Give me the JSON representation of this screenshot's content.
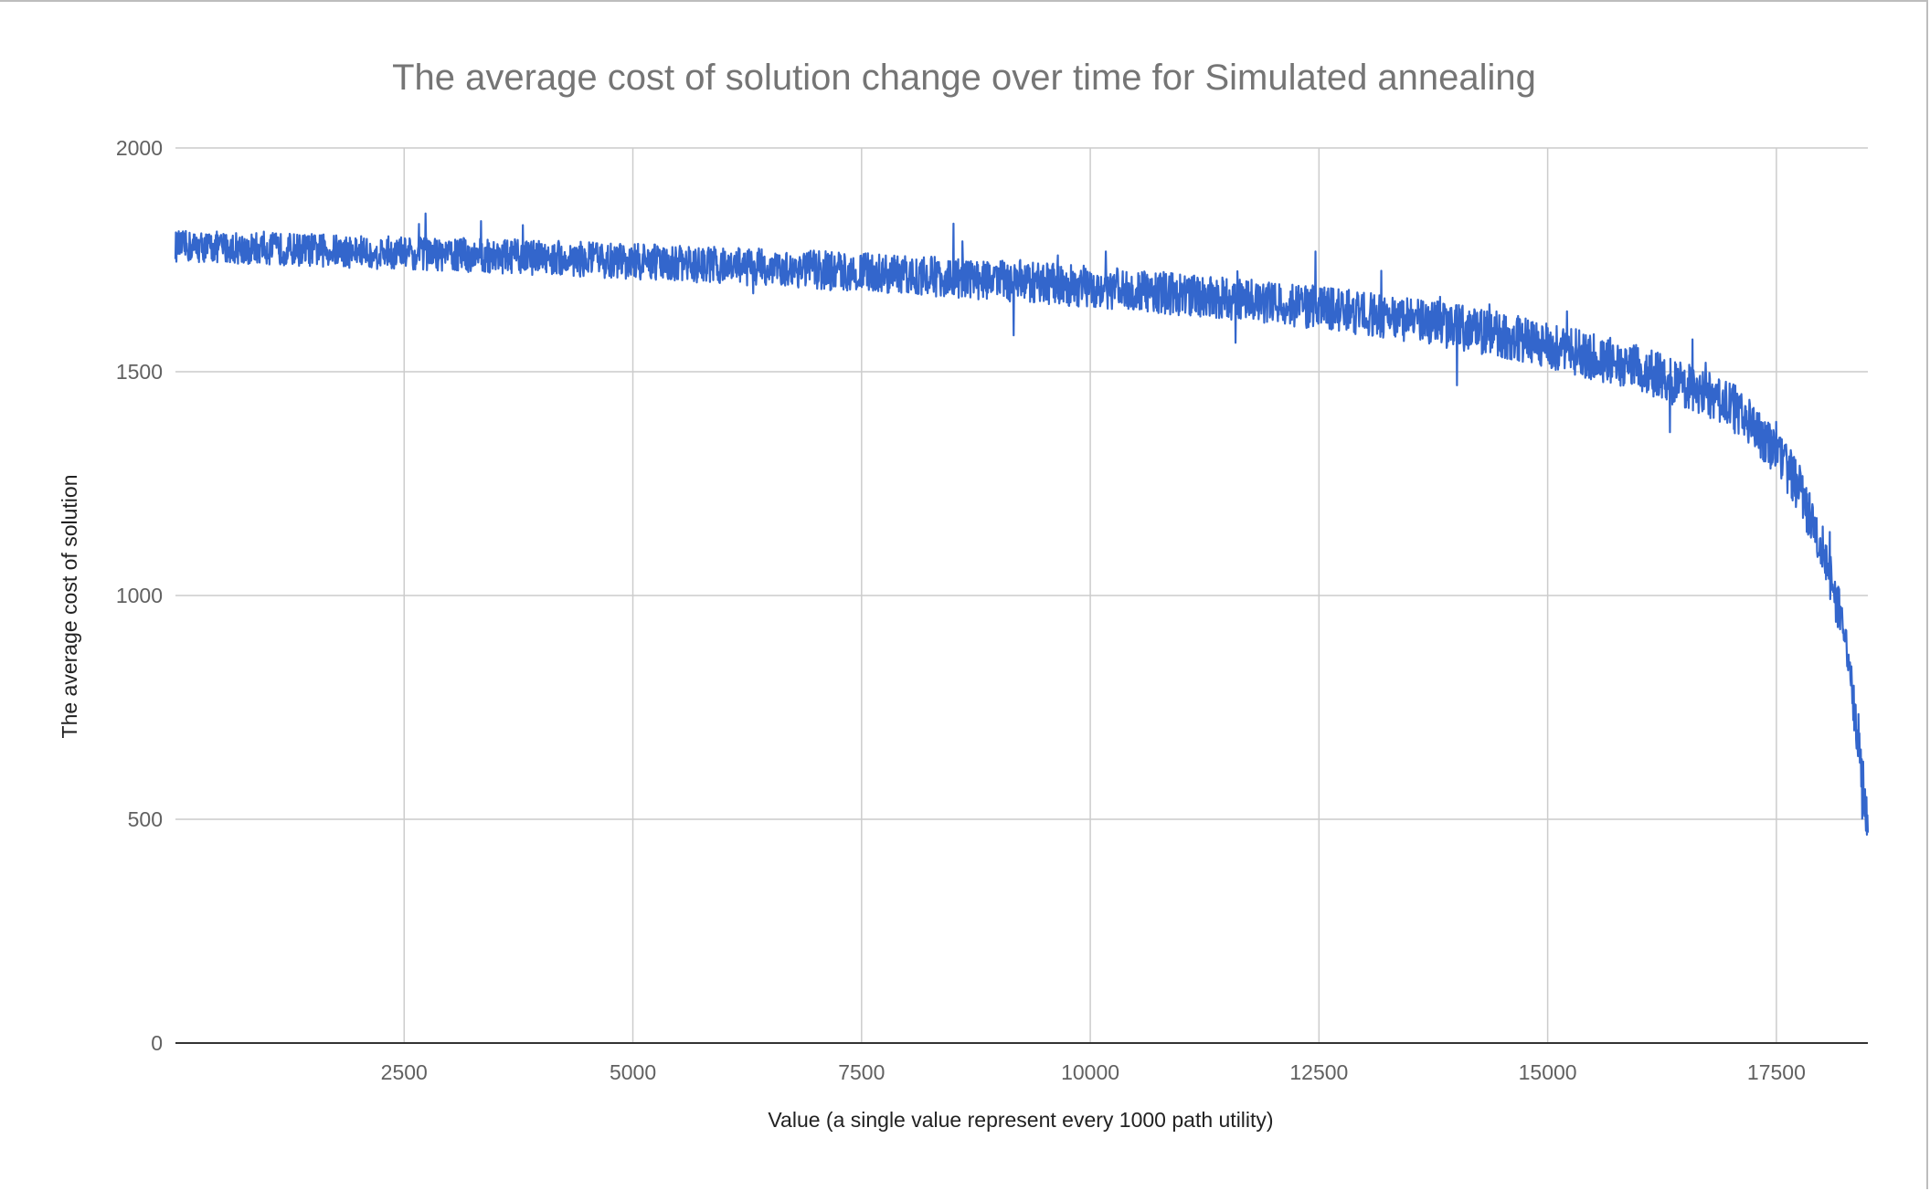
{
  "chart_data": {
    "type": "line",
    "title": "The average cost of solution change over time for Simulated annealing",
    "xlabel": "Value (a single value represent every 1000 path utility)",
    "ylabel": "The average cost of solution",
    "xlim": [
      0,
      18500
    ],
    "ylim": [
      0,
      2000
    ],
    "x_ticks": [
      2500,
      5000,
      7500,
      10000,
      12500,
      15000,
      17500
    ],
    "y_ticks": [
      0,
      500,
      1000,
      1500,
      2000
    ],
    "grid": true,
    "legend": "none",
    "line_color": "#3366cc",
    "series": [
      {
        "x": [
          0,
          500,
          1000,
          1500,
          2000,
          2500,
          3000,
          3500,
          4000,
          4500,
          5000,
          5500,
          6000,
          6500,
          7000,
          7500,
          8000,
          8500,
          9000,
          9500,
          10000,
          10500,
          11000,
          11500,
          12000,
          12500,
          13000,
          13500,
          14000,
          14500,
          15000,
          15500,
          16000,
          16500,
          17000,
          17250,
          17500,
          17750,
          18000,
          18200,
          18300,
          18400,
          18500
        ],
        "values": [
          1780,
          1778,
          1775,
          1772,
          1768,
          1765,
          1762,
          1758,
          1755,
          1750,
          1746,
          1741,
          1737,
          1733,
          1728,
          1722,
          1716,
          1710,
          1704,
          1697,
          1690,
          1682,
          1673,
          1664,
          1654,
          1643,
          1630,
          1616,
          1600,
          1582,
          1560,
          1534,
          1505,
          1470,
          1425,
          1380,
          1320,
          1240,
          1110,
          950,
          820,
          680,
          470
        ],
        "band": 35
      }
    ]
  }
}
